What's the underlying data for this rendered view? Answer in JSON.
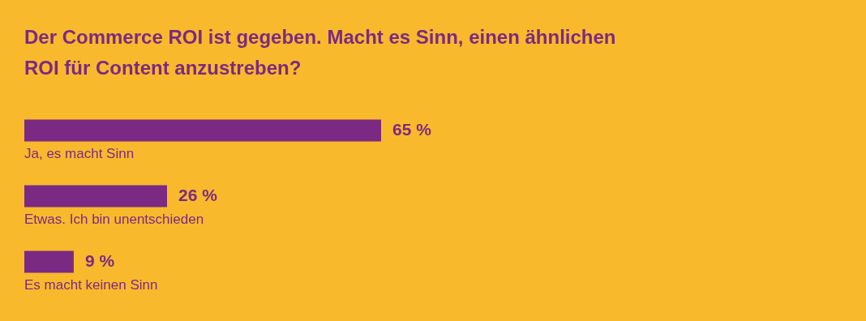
{
  "chart_data": {
    "type": "bar",
    "orientation": "horizontal",
    "title": [
      "Der Commerce ROI ist gegeben. Macht es Sinn, einen ähnlichen",
      "ROI für Content anzustreben?"
    ],
    "categories": [
      "Ja, es macht Sinn",
      "Etwas. Ich bin unentschieden",
      "Es macht keinen Sinn"
    ],
    "values": [
      65,
      26,
      9
    ],
    "value_labels": [
      "65 %",
      "26 %",
      "9 %"
    ],
    "color": "#7b2a83"
  }
}
